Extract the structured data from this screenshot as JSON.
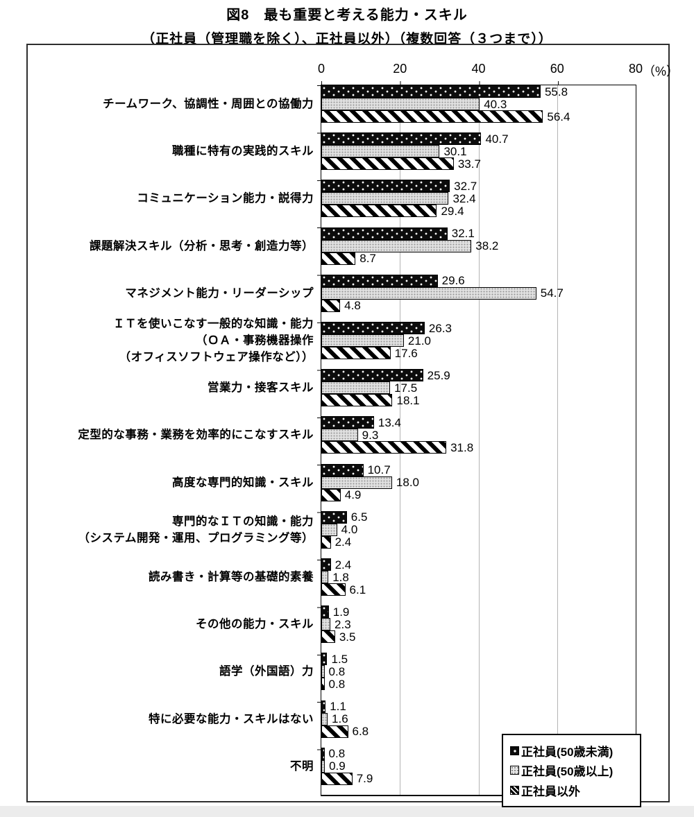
{
  "title": "図8　最も重要と考える能力・スキル",
  "subtitle": "（正社員（管理職を除く）、正社員以外）（複数回答（３つまで））",
  "chart_data": {
    "type": "bar",
    "orientation": "horizontal",
    "title": "図8　最も重要と考える能力・スキル（正社員（管理職を除く）、正社員以外）（複数回答（３つまで））",
    "unit_label": "（%）",
    "xmax": 80,
    "x_ticks": [
      0,
      20,
      40,
      60,
      80
    ],
    "grid": true,
    "legend_position": "inside-bottom-right",
    "categories": [
      "チームワーク、協調性・周囲との協働力",
      "職種に特有の実践的スキル",
      "コミュニケーション能力・説得力",
      "課題解決スキル（分析・思考・創造力等）",
      "マネジメント能力・リーダーシップ",
      "ＩＴを使いこなす一般的な知識・能力\n（ＯＡ・事務機器操作\n（オフィスソフトウェア操作など））",
      "営業力・接客スキル",
      "定型的な事務・業務を効率的にこなすスキル",
      "高度な専門的知識・スキル",
      "専門的なＩＴの知識・能力\n（システム開発・運用、プログラミング等）",
      "読み書き・計算等の基礎的素養",
      "その他の能力・スキル",
      "語学（外国語）力",
      "特に必要な能力・スキルはない",
      "不明"
    ],
    "series": [
      {
        "name": "正社員(50歳未満)",
        "pattern": "black-with-white-dots",
        "values": [
          55.8,
          40.7,
          32.7,
          32.1,
          29.6,
          26.3,
          25.9,
          13.4,
          10.7,
          6.5,
          2.4,
          1.9,
          1.5,
          1.1,
          0.8
        ],
        "labels": [
          "55.8",
          "40.7",
          "32.7",
          "32.1",
          "29.6",
          "26.3",
          "25.9",
          "13.4",
          "10.7",
          "6.5",
          "2.4",
          "1.9",
          "1.5",
          "1.1",
          "0.8"
        ]
      },
      {
        "name": "正社員(50歳以上)",
        "pattern": "light-gray-fine-dots",
        "values": [
          40.3,
          30.1,
          32.4,
          38.2,
          54.7,
          21.0,
          17.5,
          9.3,
          18.0,
          4.0,
          1.8,
          2.3,
          0.8,
          1.6,
          0.9
        ],
        "labels": [
          "40.3",
          "30.1",
          "32.4",
          "38.2",
          "54.7",
          "21.0",
          "17.5",
          "9.3",
          "18.0",
          "4.0",
          "1.8",
          "2.3",
          "0.8",
          "1.6",
          "0.9"
        ]
      },
      {
        "name": "正社員以外",
        "pattern": "diagonal-stripes",
        "values": [
          56.4,
          33.7,
          29.4,
          8.7,
          4.8,
          17.6,
          18.1,
          31.8,
          4.9,
          2.4,
          6.1,
          3.5,
          0.8,
          6.8,
          7.9
        ],
        "labels": [
          "56.4",
          "33.7",
          "29.4",
          "8.7",
          "4.8",
          "17.6",
          "18.1",
          "31.8",
          "4.9",
          "2.4",
          "6.1",
          "3.5",
          "0.8",
          "6.8",
          "7.9"
        ]
      }
    ]
  },
  "legend": {
    "items": [
      {
        "label": "正社員(50歳未満)"
      },
      {
        "label": "正社員(50歳以上)"
      },
      {
        "label": "正社員以外"
      }
    ]
  },
  "colors": {
    "bar_black": "#0c0c0c",
    "bar_gray": "#e0e0e0",
    "gridline": "#b4b4b4",
    "frame": "#2e2e2e"
  }
}
